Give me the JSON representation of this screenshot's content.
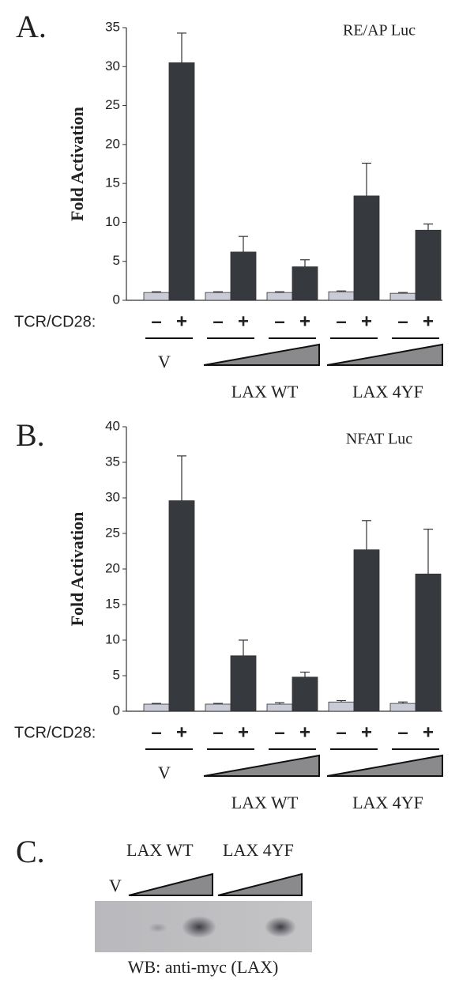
{
  "chart_data": [
    {
      "type": "bar",
      "label": "A.",
      "subtitle": "RE/AP Luc",
      "ylabel": "Fold Activation",
      "treatment": "TCR/CD28:",
      "categories": [
        "V",
        null,
        null,
        null,
        null
      ],
      "groups": [
        {
          "label": "LAX WT"
        },
        {
          "label": "LAX 4YF"
        }
      ],
      "series": [
        {
          "name": "–",
          "color": "#c9ccd6",
          "values": [
            1,
            1,
            1,
            1.1,
            0.9
          ],
          "errors": [
            0.1,
            0.1,
            0.1,
            0.1,
            0.1
          ]
        },
        {
          "name": "+",
          "color": "#363a3e",
          "values": [
            30.5,
            6.2,
            4.3,
            13.4,
            9
          ],
          "errors": [
            3.8,
            2,
            0.9,
            4.2,
            0.8
          ]
        }
      ],
      "ylim": [
        0,
        35
      ],
      "yticks": [
        0,
        5,
        10,
        15,
        20,
        25,
        30,
        35
      ]
    },
    {
      "type": "bar",
      "label": "B.",
      "subtitle": "NFAT Luc",
      "ylabel": "Fold Activation",
      "treatment": "TCR/CD28:",
      "categories": [
        "V",
        null,
        null,
        null,
        null
      ],
      "groups": [
        {
          "label": "LAX WT"
        },
        {
          "label": "LAX 4YF"
        }
      ],
      "series": [
        {
          "name": "–",
          "color": "#c9ccd6",
          "values": [
            1,
            1,
            1,
            1.3,
            1.1
          ],
          "errors": [
            0.1,
            0.1,
            0.2,
            0.2,
            0.2
          ]
        },
        {
          "name": "+",
          "color": "#363a3e",
          "values": [
            29.6,
            7.8,
            4.8,
            22.7,
            19.3
          ],
          "errors": [
            6.3,
            2.2,
            0.7,
            4.1,
            6.3
          ]
        }
      ],
      "ylim": [
        0,
        40
      ],
      "yticks": [
        0,
        5,
        10,
        15,
        20,
        25,
        30,
        35,
        40
      ]
    }
  ],
  "blot": {
    "label": "C.",
    "groups": [
      "LAX WT",
      "LAX 4YF"
    ],
    "lane_label": "V",
    "caption": "WB: anti-myc (LAX)"
  }
}
